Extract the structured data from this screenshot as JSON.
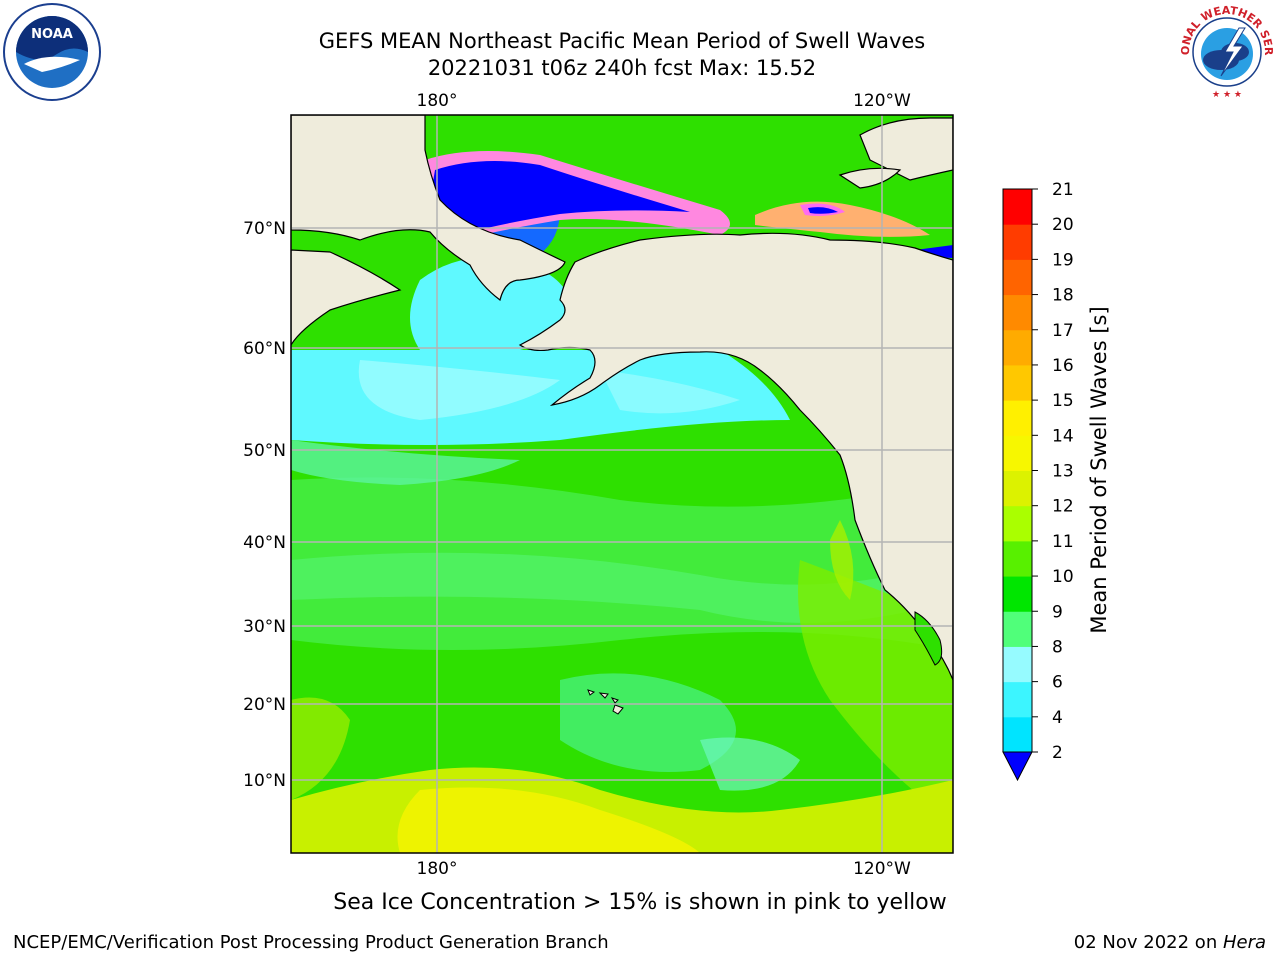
{
  "title": {
    "line1": "GEFS MEAN Northeast Pacific Mean Period of Swell Waves",
    "line2": "20221031 t06z 240h fcst   Max: 15.52"
  },
  "map": {
    "lon_ticks": [
      "180°",
      "120°W"
    ],
    "lat_ticks": [
      "70°N",
      "60°N",
      "50°N",
      "40°N",
      "30°N",
      "20°N",
      "10°N"
    ],
    "land_color": "#efecdc",
    "grid_color": "#b4b4b4"
  },
  "colorbar": {
    "label": "Mean Period of Swell Waves [s]",
    "ticks": [
      "2",
      "4",
      "6",
      "8",
      "9",
      "10",
      "11",
      "12",
      "13",
      "14",
      "15",
      "16",
      "17",
      "18",
      "19",
      "20",
      "21"
    ],
    "colors": [
      "#0a64ff",
      "#00e4ff",
      "#3cf5ff",
      "#96fbff",
      "#50ff7a",
      "#00e600",
      "#58f000",
      "#aaff00",
      "#dcf200",
      "#f7f700",
      "#fff000",
      "#ffc800",
      "#ffab00",
      "#ff8a00",
      "#ff6400",
      "#ff3c00",
      "#ff0000"
    ],
    "underflow_color": "#0000ff"
  },
  "logos": {
    "noaa_text": "NOAA",
    "nws_text": "NATIONAL WEATHER SERVICE"
  },
  "ice_note": "Sea Ice Concentration > 15% is shown in pink to yellow",
  "footer": {
    "left": "NCEP/EMC/Verification Post Processing Product Generation Branch",
    "date": "02 Nov 2022 on ",
    "machine": "Hera"
  }
}
